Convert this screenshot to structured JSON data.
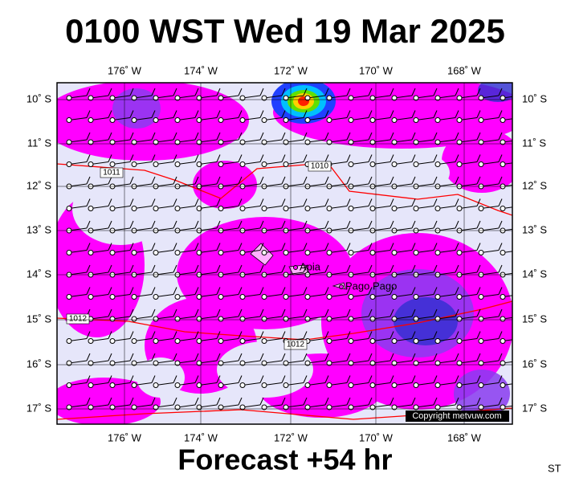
{
  "header": {
    "title": "0100 WST Wed 19 Mar 2025"
  },
  "map": {
    "lon_labels": [
      "176˚ W",
      "174˚ W",
      "172˚ W",
      "170˚ W",
      "168˚ W"
    ],
    "lat_labels": [
      "10˚ S",
      "11˚ S",
      "12˚ S",
      "13˚ S",
      "14˚ S",
      "15˚ S",
      "16˚ S",
      "17˚ S"
    ],
    "places": [
      {
        "label": "Apia"
      },
      {
        "label": "Pago Pago"
      }
    ],
    "isobar_labels": [
      "1011",
      "1010",
      "1012",
      "1012"
    ],
    "copyright": "Copyright metvuw.com"
  },
  "footer": {
    "forecast": "Forecast +54 hr",
    "code": "ST"
  }
}
